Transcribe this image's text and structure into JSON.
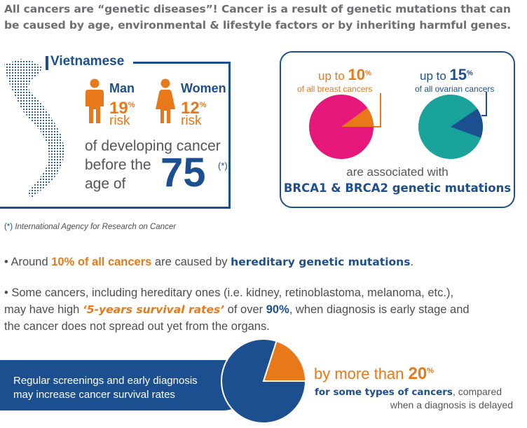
{
  "headline": {
    "line1": "All cancers are “genetic diseases”! Cancer is a result of genetic mutations that can",
    "line2": "be caused by age, environmental & lifestyle factors or by inheriting harmful genes."
  },
  "vietnam_panel": {
    "title": "Vietnamese",
    "man_label": "Man",
    "man_value": "19",
    "man_unit": "%",
    "man_risk": "risk",
    "women_label": "Women",
    "women_value": "12",
    "women_unit": "%",
    "women_risk": "risk",
    "caption_line1": "of developing cancer",
    "caption_line2": "before the",
    "caption_line3": "age of",
    "age": "75",
    "asterisk": "(*)"
  },
  "brca_panel": {
    "breast_prefix": "up to",
    "breast_value": "10",
    "breast_unit": "%",
    "breast_sub": "of all breast cancers",
    "ovarian_prefix": "up to",
    "ovarian_value": "15",
    "ovarian_unit": "%",
    "ovarian_sub": "of all ovarian cancers",
    "assoc_line1": "are associated with",
    "assoc_line2": "BRCA1 & BRCA2 genetic mutations"
  },
  "footnote": {
    "marker": "(*)",
    "text": " International Agency for Research on Cancer"
  },
  "bullet1": {
    "lead": "• Around ",
    "highlight": "10% of all cancers",
    "mid": " are caused by ",
    "emph": "hereditary genetic mutations",
    "end": "."
  },
  "bullet2": {
    "line1": "• Some cancers, including hereditary ones (i.e. kidney, retinoblastoma, melanoma, etc.),",
    "line2_a": "may have high ",
    "line2_b": "‘5-years survival rates’",
    "line2_c": " of over ",
    "line2_d": "90%",
    "line2_e": ", when diagnosis is early stage and",
    "line3": "the cancer does not spread out yet from the organs."
  },
  "banner": {
    "line1": "Regular screenings and early diagnosis",
    "line2": "may increase cancer survival rates"
  },
  "survival": {
    "prefix": "by more than ",
    "value": "20",
    "unit": "%",
    "line2_bold": "for some types of cancers",
    "line2_rest": ", compared",
    "line3": "when a diagnosis is delayed"
  },
  "pies": {
    "breast_fraction": 0.1,
    "ovarian_fraction": 0.15,
    "survival_fraction": 0.2
  },
  "colors": {
    "blue": "#1c4f8f",
    "orange": "#e8791b",
    "pink": "#e6177a",
    "teal": "#1aa39a",
    "grey_text": "#4d4d4d"
  }
}
